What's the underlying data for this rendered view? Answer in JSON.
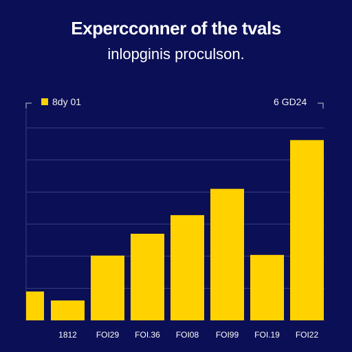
{
  "chart_data": {
    "type": "bar",
    "title": "Expercconner of the tvals",
    "subtitle": "inlopginis proculson.",
    "legend_left": "8dy 01",
    "legend_right": "6 GD24",
    "categories": [
      "1812",
      "FOI29",
      "FOI.36",
      "FOI08",
      "FOI99",
      "FOI.19",
      "FOI22"
    ],
    "values": [
      31,
      101,
      135,
      164,
      205,
      102,
      281
    ],
    "extra_partial_bar_value": 45,
    "ylim": [
      0,
      300
    ],
    "grid": true,
    "colors": {
      "background": "#0b0f56",
      "bar": "#ffd200",
      "grid": "#3a3f80",
      "axis": "#c8c8d8",
      "text": "#ffffff"
    }
  }
}
